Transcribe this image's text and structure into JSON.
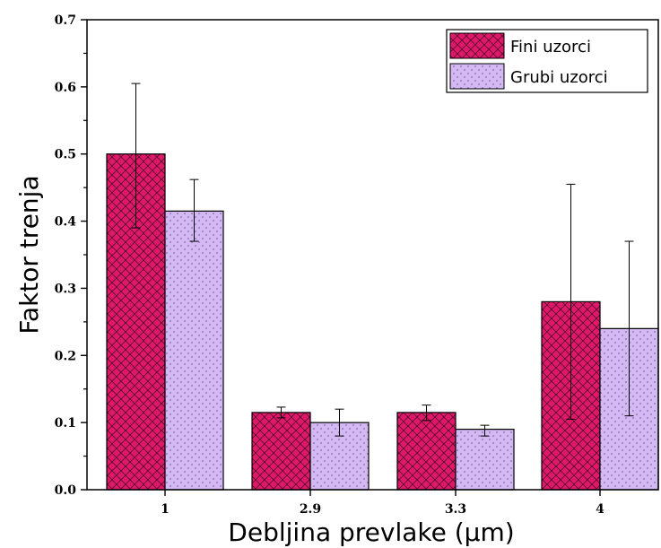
{
  "chart_data": {
    "type": "bar",
    "title": "",
    "xlabel": "Debljina prevlake (µm)",
    "ylabel": "Faktor trenja",
    "categories": [
      "1",
      "2.9",
      "3.3",
      "4"
    ],
    "ylim": [
      0,
      0.7
    ],
    "yticks": [
      "0.0",
      "0.1",
      "0.2",
      "0.3",
      "0.4",
      "0.5",
      "0.6",
      "0.7"
    ],
    "legend_position": "top-right",
    "grid": false,
    "series": [
      {
        "name": "Fini uzorci",
        "values": [
          0.5,
          0.115,
          0.115,
          0.28
        ],
        "error_low": [
          0.39,
          0.107,
          0.103,
          0.105
        ],
        "error_high": [
          0.605,
          0.123,
          0.126,
          0.455
        ],
        "color": "#e0186a",
        "pattern": "crosshatch"
      },
      {
        "name": "Grubi uzorci",
        "values": [
          0.415,
          0.1,
          0.09,
          0.24
        ],
        "error_low": [
          0.37,
          0.08,
          0.08,
          0.11
        ],
        "error_high": [
          0.462,
          0.12,
          0.096,
          0.37
        ],
        "color": "#d4b8f4",
        "pattern": "dots"
      }
    ]
  }
}
